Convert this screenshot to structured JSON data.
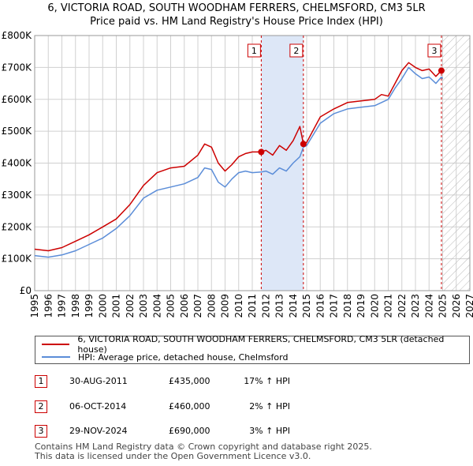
{
  "chart_data": {
    "type": "line",
    "title": "6, VICTORIA ROAD, SOUTH WOODHAM FERRERS, CHELMSFORD, CM3 5LR",
    "subtitle": "Price paid vs. HM Land Registry's House Price Index (HPI)",
    "xlim": [
      1995,
      2027
    ],
    "ylim": [
      0,
      800000
    ],
    "x_ticks": [
      1995,
      1996,
      1997,
      1998,
      1999,
      2000,
      2001,
      2002,
      2003,
      2004,
      2005,
      2006,
      2007,
      2008,
      2009,
      2010,
      2011,
      2012,
      2013,
      2014,
      2015,
      2016,
      2017,
      2018,
      2019,
      2020,
      2021,
      2022,
      2023,
      2024,
      2025,
      2026,
      2027
    ],
    "y_ticks": [
      0,
      100000,
      200000,
      300000,
      400000,
      500000,
      600000,
      700000,
      800000
    ],
    "y_tick_labels": [
      "£0",
      "£100K",
      "£200K",
      "£300K",
      "£400K",
      "£500K",
      "£600K",
      "£700K",
      "£800K"
    ],
    "series": [
      {
        "name": "6, VICTORIA ROAD, SOUTH WOODHAM FERRERS, CHELMSFORD, CM3 5LR (detached house)",
        "color": "#cc0000",
        "x": [
          1995.0,
          1996.0,
          1997.0,
          1998.0,
          1999.0,
          2000.0,
          2001.0,
          2002.0,
          2003.0,
          2004.0,
          2005.0,
          2006.0,
          2007.0,
          2007.5,
          2008.0,
          2008.5,
          2009.0,
          2009.5,
          2010.0,
          2010.5,
          2011.0,
          2011.66,
          2012.0,
          2012.5,
          2013.0,
          2013.5,
          2014.0,
          2014.5,
          2014.76,
          2015.0,
          2016.0,
          2017.0,
          2018.0,
          2019.0,
          2020.0,
          2020.5,
          2021.0,
          2021.5,
          2022.0,
          2022.5,
          2023.0,
          2023.5,
          2024.0,
          2024.5,
          2024.91
        ],
        "y": [
          130000,
          125000,
          135000,
          155000,
          175000,
          200000,
          225000,
          270000,
          330000,
          370000,
          385000,
          390000,
          425000,
          460000,
          450000,
          400000,
          375000,
          395000,
          420000,
          430000,
          435000,
          435000,
          440000,
          425000,
          455000,
          440000,
          470000,
          515000,
          460000,
          465000,
          545000,
          570000,
          590000,
          595000,
          600000,
          615000,
          610000,
          650000,
          690000,
          715000,
          700000,
          690000,
          695000,
          672000,
          690000
        ]
      },
      {
        "name": "HPI: Average price, detached house, Chelmsford",
        "color": "#5b8dd8",
        "x": [
          1995.0,
          1996.0,
          1997.0,
          1998.0,
          1999.0,
          2000.0,
          2001.0,
          2002.0,
          2003.0,
          2004.0,
          2005.0,
          2006.0,
          2007.0,
          2007.5,
          2008.0,
          2008.5,
          2009.0,
          2009.5,
          2010.0,
          2010.5,
          2011.0,
          2011.66,
          2012.0,
          2012.5,
          2013.0,
          2013.5,
          2014.0,
          2014.5,
          2014.76,
          2015.0,
          2016.0,
          2017.0,
          2018.0,
          2019.0,
          2020.0,
          2020.5,
          2021.0,
          2021.5,
          2022.0,
          2022.5,
          2023.0,
          2023.5,
          2024.0,
          2024.5,
          2024.91,
          2025.0
        ],
        "y": [
          110000,
          105000,
          112000,
          125000,
          145000,
          165000,
          195000,
          235000,
          290000,
          315000,
          325000,
          335000,
          355000,
          385000,
          380000,
          340000,
          325000,
          350000,
          370000,
          375000,
          370000,
          372000,
          375000,
          365000,
          385000,
          375000,
          400000,
          420000,
          450000,
          455000,
          525000,
          555000,
          570000,
          575000,
          580000,
          590000,
          600000,
          635000,
          665000,
          700000,
          680000,
          665000,
          670000,
          650000,
          670000,
          665000
        ]
      }
    ],
    "annotations": [
      {
        "label": "1",
        "x": 2011.66,
        "y": 435000
      },
      {
        "label": "2",
        "x": 2014.76,
        "y": 460000
      },
      {
        "label": "3",
        "x": 2024.91,
        "y": 690000
      }
    ]
  },
  "legend": {
    "property_label": "6, VICTORIA ROAD, SOUTH WOODHAM FERRERS, CHELMSFORD, CM3 5LR (detached house)",
    "hpi_label": "HPI: Average price, detached house, Chelmsford"
  },
  "transactions": [
    {
      "num": "1",
      "date": "30-AUG-2011",
      "price": "£435,000",
      "hpi": "17% ↑ HPI"
    },
    {
      "num": "2",
      "date": "06-OCT-2014",
      "price": "£460,000",
      "hpi": "2% ↑ HPI"
    },
    {
      "num": "3",
      "date": "29-NOV-2024",
      "price": "£690,000",
      "hpi": "3% ↑ HPI"
    }
  ],
  "footer": {
    "line1": "Contains HM Land Registry data © Crown copyright and database right 2025.",
    "line2": "This data is licensed under the Open Government Licence v3.0."
  },
  "colors": {
    "property": "#cc0000",
    "hpi": "#5b8dd8",
    "shade": "#dde7f7",
    "grid": "#d0d0d0"
  }
}
